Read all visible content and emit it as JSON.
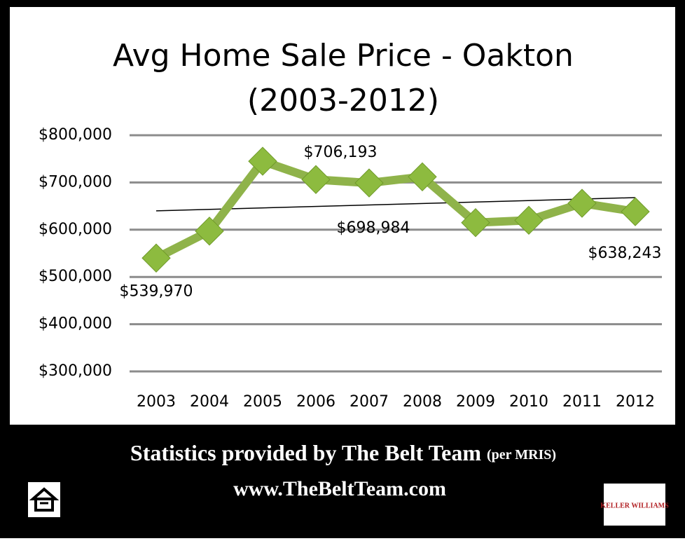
{
  "chart_data": {
    "type": "line",
    "title": "Avg Home Sale Price - Oakton",
    "subtitle": "(2003-2012)",
    "categories": [
      "2003",
      "2004",
      "2005",
      "2006",
      "2007",
      "2008",
      "2009",
      "2010",
      "2011",
      "2012"
    ],
    "series": [
      {
        "color": "#8fb34a",
        "values": [
          539970,
          597000,
          745000,
          706193,
          698984,
          712000,
          615000,
          620000,
          656000,
          638243
        ],
        "value_labels": [
          "$539,970",
          null,
          null,
          "$706,193",
          "$698,984",
          null,
          null,
          null,
          null,
          "$638,243"
        ]
      }
    ],
    "trend": {
      "color": "#000000",
      "values": [
        640000,
        668000
      ]
    },
    "ylim": [
      300000,
      800000
    ],
    "yticks": [
      {
        "value": 300000,
        "label": "$300,000"
      },
      {
        "value": 400000,
        "label": "$400,000"
      },
      {
        "value": 500000,
        "label": "$500,000"
      },
      {
        "value": 600000,
        "label": "$600,000"
      },
      {
        "value": 700000,
        "label": "$700,000"
      },
      {
        "value": 800000,
        "label": "$800,000"
      }
    ],
    "grid": true
  },
  "footer": {
    "line1": "Statistics provided by The Belt Team",
    "line1_note": "(per MRIS)",
    "line2": "www.TheBeltTeam.com",
    "logo_text": "KELLER WILLIAMS"
  }
}
